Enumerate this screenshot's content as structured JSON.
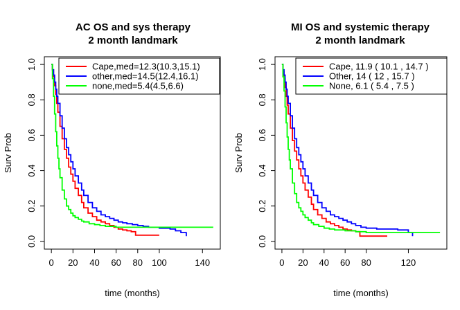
{
  "chart_data": [
    {
      "type": "line",
      "title": "AC OS and sys therapy",
      "subtitle": "2 month landmark",
      "xlabel": "time (months)",
      "ylabel": "Surv Prob",
      "xlim": [
        0,
        150
      ],
      "ylim": [
        0,
        1.0
      ],
      "x_ticks": [
        0,
        20,
        40,
        60,
        80,
        100,
        140
      ],
      "y_ticks": [
        0.0,
        0.2,
        0.4,
        0.6,
        0.8,
        1.0
      ],
      "y_tick_labels": [
        "0.0",
        "0.2",
        "0.4",
        "0.6",
        "0.8",
        "1.0"
      ],
      "grid": false,
      "legend_position": "top-right",
      "series": [
        {
          "name": "Cape,med=12.3(10.3,15.1)",
          "color": "#ff0000",
          "x": [
            0,
            1,
            2,
            3,
            4,
            5,
            6,
            8,
            10,
            12,
            14,
            16,
            18,
            20,
            22,
            25,
            28,
            30,
            34,
            38,
            42,
            46,
            50,
            54,
            58,
            62,
            66,
            70,
            74,
            78,
            82,
            86,
            90,
            95,
            100
          ],
          "y": [
            1.0,
            0.97,
            0.93,
            0.88,
            0.83,
            0.78,
            0.73,
            0.65,
            0.58,
            0.52,
            0.47,
            0.42,
            0.38,
            0.34,
            0.3,
            0.26,
            0.22,
            0.19,
            0.16,
            0.14,
            0.12,
            0.11,
            0.1,
            0.09,
            0.08,
            0.07,
            0.065,
            0.06,
            0.055,
            0.035,
            0.035,
            0.035,
            0.035,
            0.035,
            0.035
          ]
        },
        {
          "name": "other,med=14.5(12.4,16.1)",
          "color": "#0000ff",
          "x": [
            0,
            1,
            2,
            3,
            4,
            5,
            6,
            8,
            10,
            12,
            14,
            16,
            18,
            20,
            22,
            25,
            28,
            30,
            34,
            38,
            42,
            46,
            50,
            54,
            58,
            62,
            66,
            70,
            75,
            80,
            85,
            90,
            100,
            110,
            115,
            120,
            125
          ],
          "y": [
            1.0,
            0.97,
            0.94,
            0.9,
            0.86,
            0.82,
            0.78,
            0.71,
            0.64,
            0.58,
            0.53,
            0.49,
            0.45,
            0.41,
            0.37,
            0.33,
            0.29,
            0.26,
            0.22,
            0.19,
            0.17,
            0.15,
            0.14,
            0.13,
            0.12,
            0.11,
            0.105,
            0.1,
            0.095,
            0.09,
            0.085,
            0.08,
            0.075,
            0.07,
            0.06,
            0.05,
            0.03
          ]
        },
        {
          "name": "none,med=5.4(4.5,6.6)",
          "color": "#00ff00",
          "x": [
            0,
            1,
            2,
            3,
            4,
            5,
            6,
            7,
            8,
            10,
            12,
            14,
            16,
            18,
            20,
            22,
            25,
            28,
            30,
            35,
            40,
            45,
            50,
            60,
            70,
            80,
            100,
            120,
            150
          ],
          "y": [
            1.0,
            0.92,
            0.82,
            0.72,
            0.62,
            0.54,
            0.47,
            0.41,
            0.36,
            0.29,
            0.24,
            0.2,
            0.18,
            0.16,
            0.145,
            0.135,
            0.125,
            0.115,
            0.11,
            0.1,
            0.095,
            0.09,
            0.085,
            0.08,
            0.08,
            0.08,
            0.08,
            0.08,
            0.08
          ]
        }
      ]
    },
    {
      "type": "line",
      "title": "MI OS and systemic therapy",
      "subtitle": "2 month landmark",
      "xlabel": "time (months)",
      "ylabel": "Surv Prob",
      "xlim": [
        0,
        150
      ],
      "ylim": [
        0,
        1.0
      ],
      "x_ticks": [
        0,
        20,
        40,
        60,
        80,
        120
      ],
      "y_ticks": [
        0.0,
        0.2,
        0.4,
        0.6,
        0.8,
        1.0
      ],
      "y_tick_labels": [
        "0.0",
        "0.2",
        "0.4",
        "0.6",
        "0.8",
        "1.0"
      ],
      "grid": false,
      "legend_position": "top-right",
      "series": [
        {
          "name": "Cape, 11.9 ( 10.1 , 14.7 )",
          "color": "#ff0000",
          "x": [
            0,
            1,
            2,
            3,
            4,
            5,
            6,
            8,
            10,
            12,
            14,
            16,
            18,
            20,
            22,
            25,
            28,
            30,
            34,
            38,
            42,
            46,
            50,
            54,
            58,
            62,
            66,
            70,
            74,
            78,
            82,
            86,
            90,
            100
          ],
          "y": [
            1.0,
            0.96,
            0.92,
            0.87,
            0.82,
            0.77,
            0.72,
            0.64,
            0.57,
            0.51,
            0.46,
            0.41,
            0.37,
            0.33,
            0.29,
            0.25,
            0.21,
            0.18,
            0.15,
            0.13,
            0.11,
            0.1,
            0.09,
            0.08,
            0.07,
            0.065,
            0.06,
            0.055,
            0.03,
            0.03,
            0.03,
            0.03,
            0.03,
            0.03
          ]
        },
        {
          "name": "Other, 14 ( 12 , 15.7 )",
          "color": "#0000ff",
          "x": [
            0,
            1,
            2,
            3,
            4,
            5,
            6,
            8,
            10,
            12,
            14,
            16,
            18,
            20,
            22,
            25,
            28,
            30,
            34,
            38,
            42,
            46,
            50,
            54,
            58,
            62,
            66,
            70,
            75,
            80,
            90,
            100,
            110,
            120,
            124
          ],
          "y": [
            1.0,
            0.97,
            0.94,
            0.9,
            0.86,
            0.82,
            0.78,
            0.71,
            0.64,
            0.58,
            0.53,
            0.49,
            0.45,
            0.41,
            0.37,
            0.33,
            0.29,
            0.26,
            0.22,
            0.19,
            0.17,
            0.15,
            0.14,
            0.13,
            0.12,
            0.11,
            0.1,
            0.09,
            0.08,
            0.075,
            0.07,
            0.07,
            0.065,
            0.05,
            0.03
          ]
        },
        {
          "name": "None, 6.1 ( 5.4 , 7.5 )",
          "color": "#00ff00",
          "x": [
            0,
            1,
            2,
            3,
            4,
            5,
            6,
            7,
            8,
            10,
            12,
            14,
            16,
            18,
            20,
            22,
            25,
            28,
            30,
            35,
            40,
            45,
            50,
            60,
            70,
            80,
            100,
            120,
            150
          ],
          "y": [
            1.0,
            0.93,
            0.85,
            0.76,
            0.67,
            0.59,
            0.52,
            0.46,
            0.41,
            0.33,
            0.27,
            0.22,
            0.19,
            0.17,
            0.15,
            0.135,
            0.12,
            0.105,
            0.095,
            0.085,
            0.075,
            0.07,
            0.065,
            0.06,
            0.055,
            0.05,
            0.05,
            0.05,
            0.05
          ]
        }
      ]
    }
  ]
}
